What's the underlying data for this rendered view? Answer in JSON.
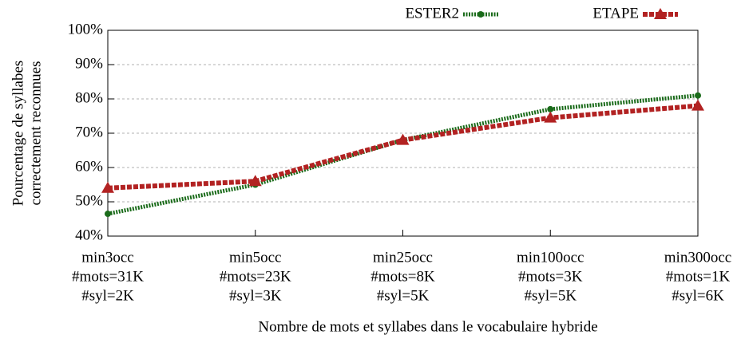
{
  "chart_data": {
    "type": "line",
    "xlabel": "Nombre de mots et syllabes dans le vocabulaire hybride",
    "ylabel": [
      "Pourcentage de syllabes",
      "correctement reconnues"
    ],
    "categories": [
      [
        "min3occ",
        "#mots=31K",
        "#syl=2K"
      ],
      [
        "min5occ",
        "#mots=23K",
        "#syl=3K"
      ],
      [
        "min25occ",
        "#mots=8K",
        "#syl=5K"
      ],
      [
        "min100occ",
        "#mots=3K",
        "#syl=5K"
      ],
      [
        "min300occ",
        "#mots=1K",
        "#syl=6K"
      ]
    ],
    "series": [
      {
        "name": "ESTER2",
        "color": "#1a6b1a",
        "values": [
          46.5,
          55,
          68,
          77,
          81
        ]
      },
      {
        "name": "ETAPE",
        "color": "#b22222",
        "values": [
          54,
          56,
          68,
          74.5,
          78
        ]
      }
    ],
    "ylim": [
      40,
      100
    ],
    "yticks": [
      {
        "value": 40,
        "label": "40%"
      },
      {
        "value": 50,
        "label": "50%"
      },
      {
        "value": 60,
        "label": "60%"
      },
      {
        "value": 70,
        "label": "70%"
      },
      {
        "value": 80,
        "label": "80%"
      },
      {
        "value": 90,
        "label": "90%"
      },
      {
        "value": 100,
        "label": "100%"
      }
    ],
    "grid": true,
    "legend": "top"
  }
}
